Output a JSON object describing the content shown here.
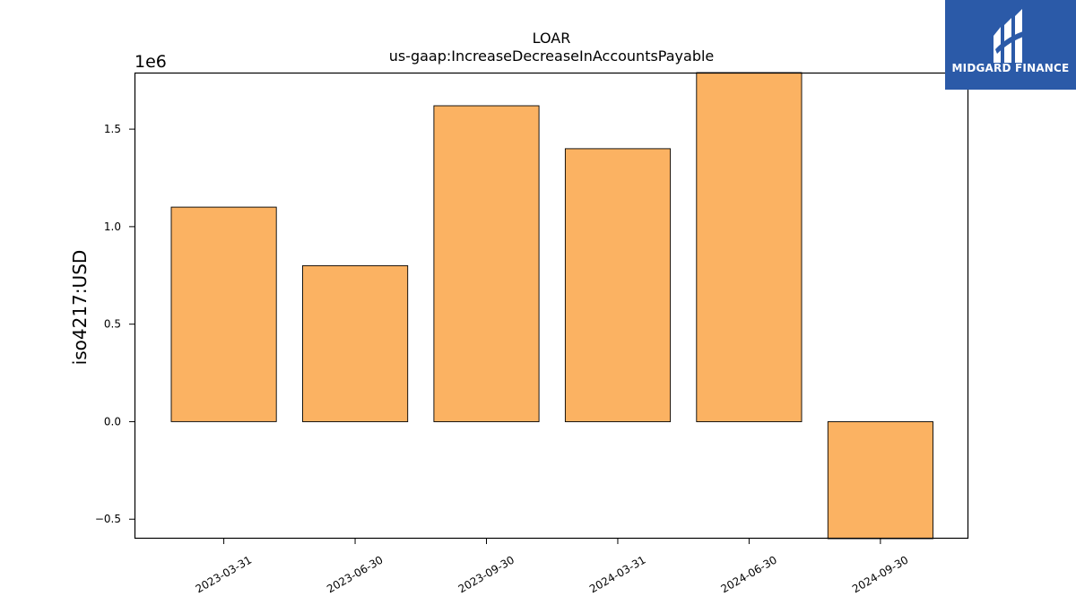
{
  "chart_data": {
    "type": "bar",
    "title": "LOAR",
    "subtitle": "us-gaap:IncreaseDecreaseInAccountsPayable",
    "ylabel": "iso4217:USD",
    "xlabel": "",
    "offset_label": "1e6",
    "categories": [
      "2023-03-31",
      "2023-06-30",
      "2023-09-30",
      "2024-03-31",
      "2024-06-30",
      "2024-09-30"
    ],
    "values": [
      1100000,
      800000,
      1620000,
      1400000,
      1790000,
      -600000
    ],
    "ylim": [
      -600000,
      1790000
    ],
    "yticks": [
      -500000,
      0,
      500000,
      1000000,
      1500000
    ],
    "ytick_labels": [
      "−0.5",
      "0.0",
      "0.5",
      "1.0",
      "1.5"
    ],
    "bar_color": "#fbb262",
    "grid": false
  },
  "logo": {
    "text": "MIDGARD FINANCE",
    "background": "#2b5aa8"
  }
}
